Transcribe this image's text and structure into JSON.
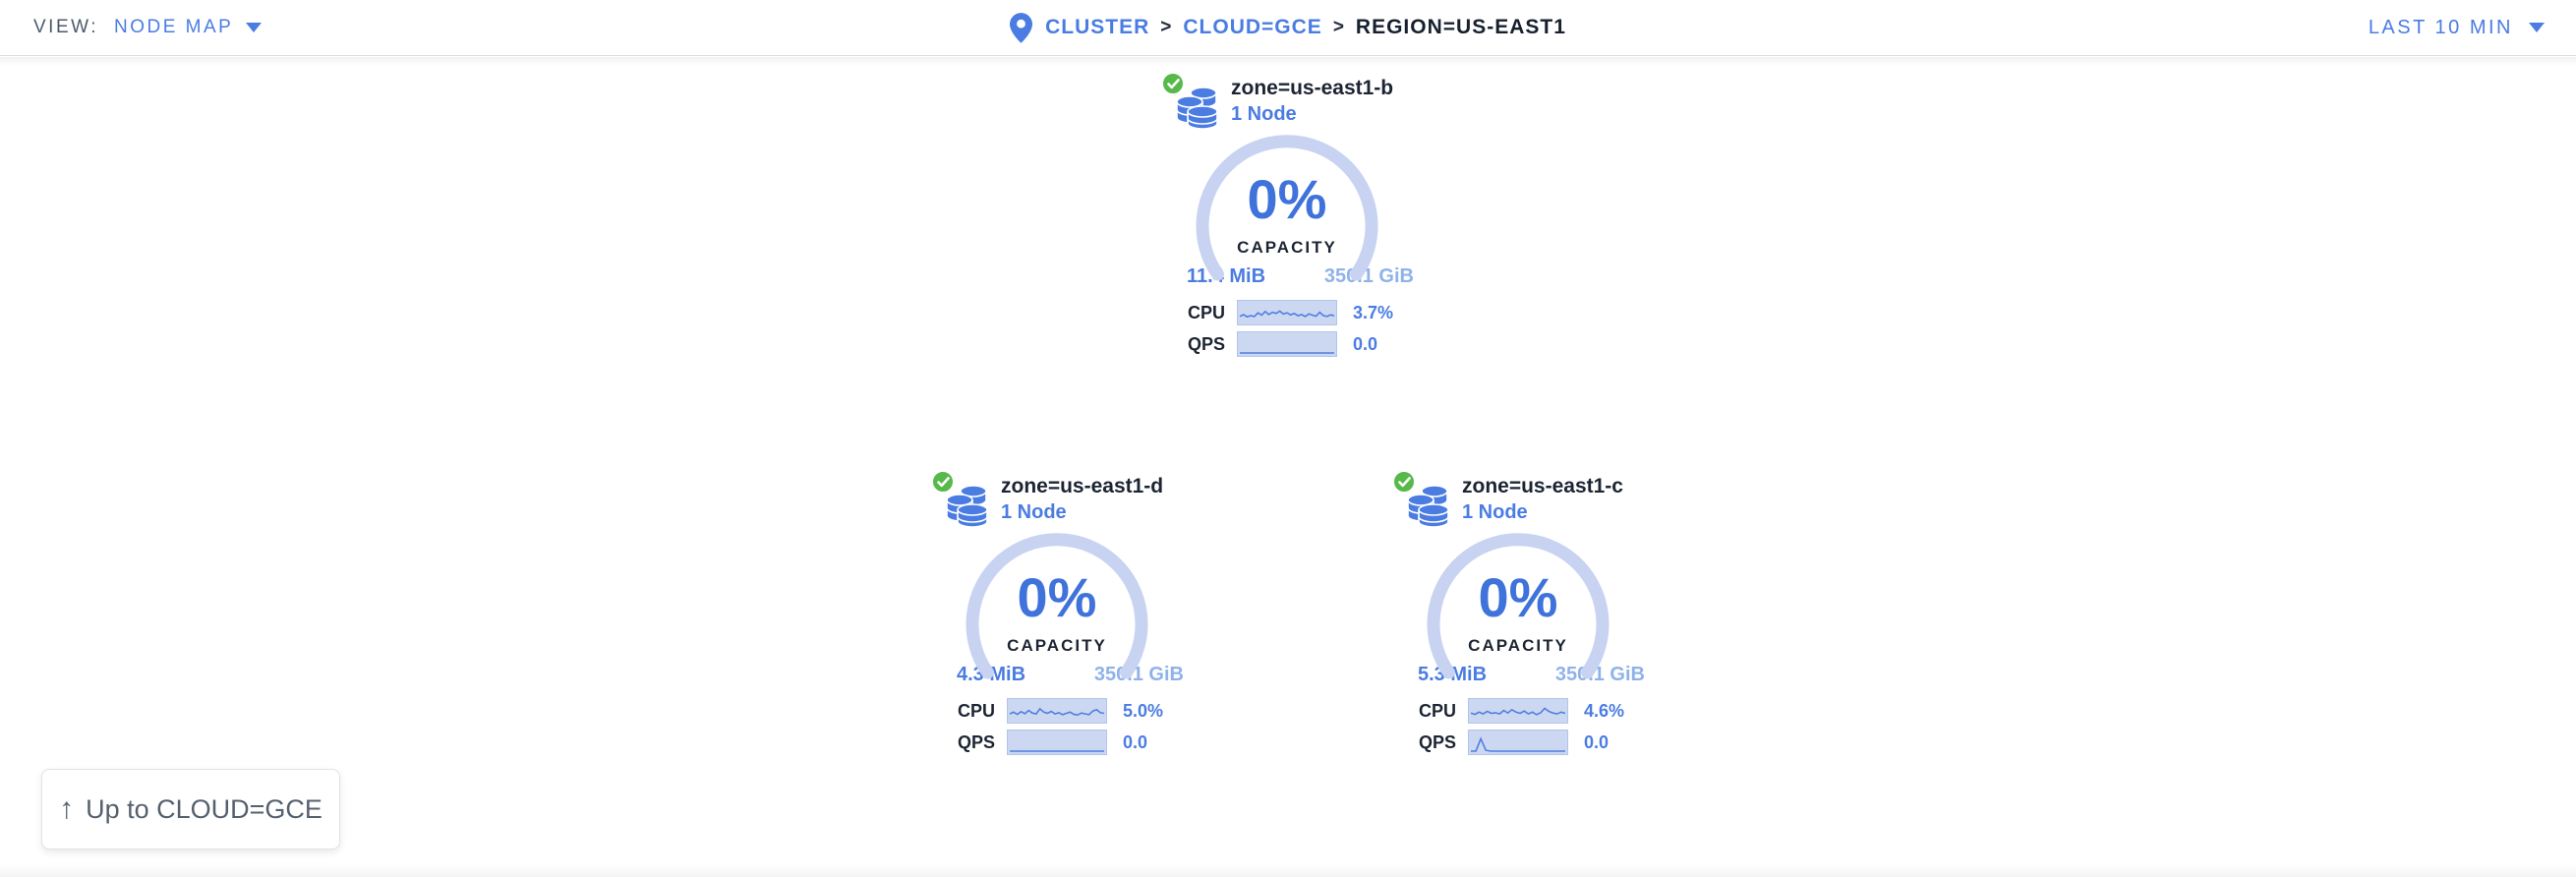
{
  "topbar": {
    "view_label": "VIEW:",
    "view_value": "NODE MAP",
    "time_range": "LAST 10 MIN"
  },
  "breadcrumb": {
    "cluster": "CLUSTER",
    "sep1": ">",
    "cloud": "CLOUD=GCE",
    "sep2": ">",
    "region": "REGION=US-EAST1"
  },
  "zones": [
    {
      "name": "zone=us-east1-b",
      "node_count": "1 Node",
      "status": "healthy",
      "capacity_pct": "0%",
      "capacity_label": "CAPACITY",
      "capacity_used": "11.4 MiB",
      "capacity_total": "350.1 GiB",
      "cpu_label": "CPU",
      "cpu_value": "3.7%",
      "qps_label": "QPS",
      "qps_value": "0.0",
      "cpu_spark": [
        0.3,
        0.42,
        0.28,
        0.35,
        0.3,
        0.52,
        0.38,
        0.6,
        0.42,
        0.55,
        0.48,
        0.62,
        0.45,
        0.52,
        0.4,
        0.48,
        0.35,
        0.42,
        0.3,
        0.45,
        0.38,
        0.32,
        0.55,
        0.36,
        0.3,
        0.4,
        0.34
      ],
      "qps_spark": [
        0,
        0,
        0,
        0,
        0,
        0,
        0,
        0,
        0,
        0,
        0,
        0,
        0,
        0,
        0,
        0,
        0,
        0,
        0,
        0
      ]
    },
    {
      "name": "zone=us-east1-d",
      "node_count": "1 Node",
      "status": "healthy",
      "capacity_pct": "0%",
      "capacity_label": "CAPACITY",
      "capacity_used": "4.3 MiB",
      "capacity_total": "350.1 GiB",
      "cpu_label": "CPU",
      "cpu_value": "5.0%",
      "qps_label": "QPS",
      "qps_value": "0.0",
      "cpu_spark": [
        0.35,
        0.45,
        0.32,
        0.48,
        0.36,
        0.55,
        0.4,
        0.35,
        0.65,
        0.45,
        0.38,
        0.5,
        0.35,
        0.42,
        0.3,
        0.38,
        0.45,
        0.32,
        0.28,
        0.4,
        0.35,
        0.3,
        0.52,
        0.6,
        0.42,
        0.38
      ],
      "qps_spark": [
        0,
        0,
        0,
        0,
        0,
        0,
        0,
        0,
        0,
        0,
        0,
        0,
        0,
        0,
        0,
        0,
        0,
        0,
        0,
        0
      ]
    },
    {
      "name": "zone=us-east1-c",
      "node_count": "1 Node",
      "status": "healthy",
      "capacity_pct": "0%",
      "capacity_label": "CAPACITY",
      "capacity_used": "5.3 MiB",
      "capacity_total": "350.1 GiB",
      "cpu_label": "CPU",
      "cpu_value": "4.6%",
      "qps_label": "QPS",
      "qps_value": "0.0",
      "cpu_spark": [
        0.4,
        0.32,
        0.45,
        0.35,
        0.5,
        0.38,
        0.42,
        0.35,
        0.55,
        0.4,
        0.6,
        0.45,
        0.38,
        0.52,
        0.35,
        0.45,
        0.3,
        0.42,
        0.68,
        0.5,
        0.4,
        0.35,
        0.45,
        0.38
      ],
      "qps_spark": [
        0,
        0,
        0.75,
        0.05,
        0,
        0,
        0,
        0,
        0,
        0,
        0,
        0,
        0,
        0,
        0,
        0,
        0,
        0,
        0,
        0
      ]
    }
  ],
  "up_button": {
    "arrow": "↑",
    "label": "Up to CLOUD=GCE"
  },
  "colors": {
    "blue": "#4a7ce2",
    "blue_strong": "#3f72da",
    "blue_light": "#8fb2ea",
    "arc": "#c7d3f1",
    "spark_bg": "#ccd8f1",
    "spark_line": "#4f7fe0",
    "dark": "#1c2433",
    "green": "#57b94a"
  }
}
